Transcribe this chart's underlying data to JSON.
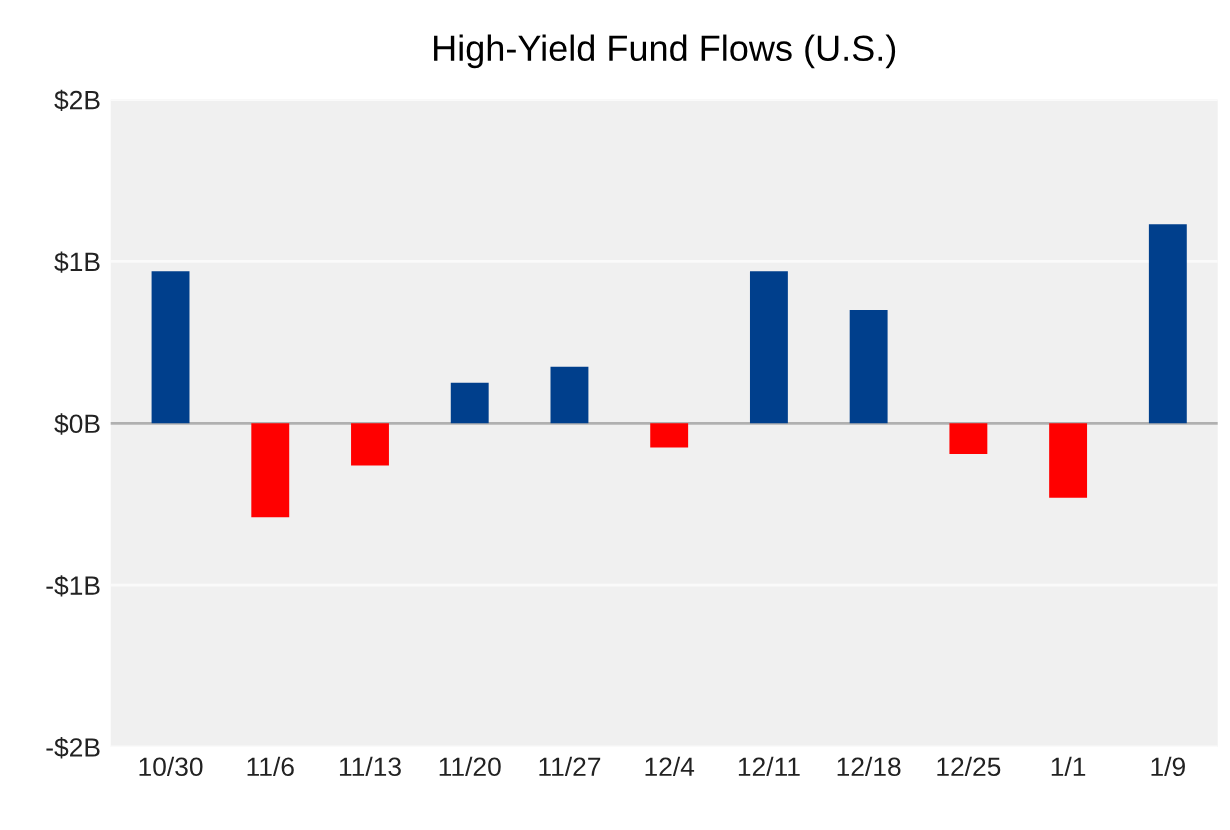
{
  "chart_data": {
    "type": "bar",
    "title": "High-Yield Fund Flows (U.S.)",
    "categories": [
      "10/30",
      "11/6",
      "11/13",
      "11/20",
      "11/27",
      "12/4",
      "12/11",
      "12/18",
      "12/25",
      "1/1",
      "1/9"
    ],
    "values": [
      0.94,
      -0.58,
      -0.26,
      0.25,
      0.35,
      -0.15,
      0.94,
      0.7,
      -0.19,
      -0.46,
      1.23
    ],
    "colors": [
      "#003f8c",
      "#ff0000",
      "#ff0000",
      "#003f8c",
      "#003f8c",
      "#ff0000",
      "#003f8c",
      "#003f8c",
      "#ff0000",
      "#ff0000",
      "#003f8c"
    ],
    "ylim": [
      -2,
      2
    ],
    "yticks": [
      {
        "value": 2,
        "label": "$2B"
      },
      {
        "value": 1,
        "label": "$1B"
      },
      {
        "value": 0,
        "label": "$0B"
      },
      {
        "value": -1,
        "label": "-$1B"
      },
      {
        "value": -2,
        "label": "-$2B"
      }
    ],
    "ref_lines": [
      {
        "axis": "y",
        "value": 0,
        "color": "#b0b0b0"
      }
    ],
    "grid": "y"
  }
}
